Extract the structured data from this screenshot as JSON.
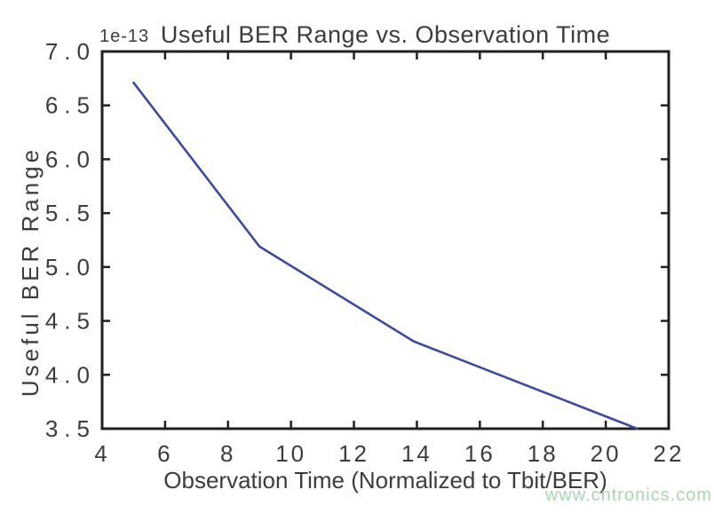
{
  "figure": {
    "background": "#ffffff"
  },
  "watermark": {
    "text": "www.cntronics.com",
    "color": "#a6d9ae"
  },
  "chart_data": {
    "type": "line",
    "title": "Useful BER Range vs. Observation Time",
    "xlabel": "Observation Time (Normalized to Tbit/BER)",
    "ylabel": "Useful BER Range",
    "y_offset_text": "1e-13",
    "xlim": [
      4,
      22
    ],
    "ylim": [
      3.5,
      7.0
    ],
    "xticks": [
      4,
      6,
      8,
      10,
      12,
      14,
      16,
      18,
      20,
      22
    ],
    "yticks": [
      3.5,
      4.0,
      4.5,
      5.0,
      5.5,
      6.0,
      6.5,
      7.0
    ],
    "grid": false,
    "legend_position": "none",
    "colors": {
      "line": "#3b4aa2",
      "axis": "#231f1f",
      "text": "#3c3c3e"
    },
    "series": [
      {
        "points": [
          [
            5,
            6.71
          ],
          [
            9,
            5.19
          ],
          [
            13.9,
            4.31
          ],
          [
            21,
            3.5
          ]
        ]
      }
    ]
  }
}
